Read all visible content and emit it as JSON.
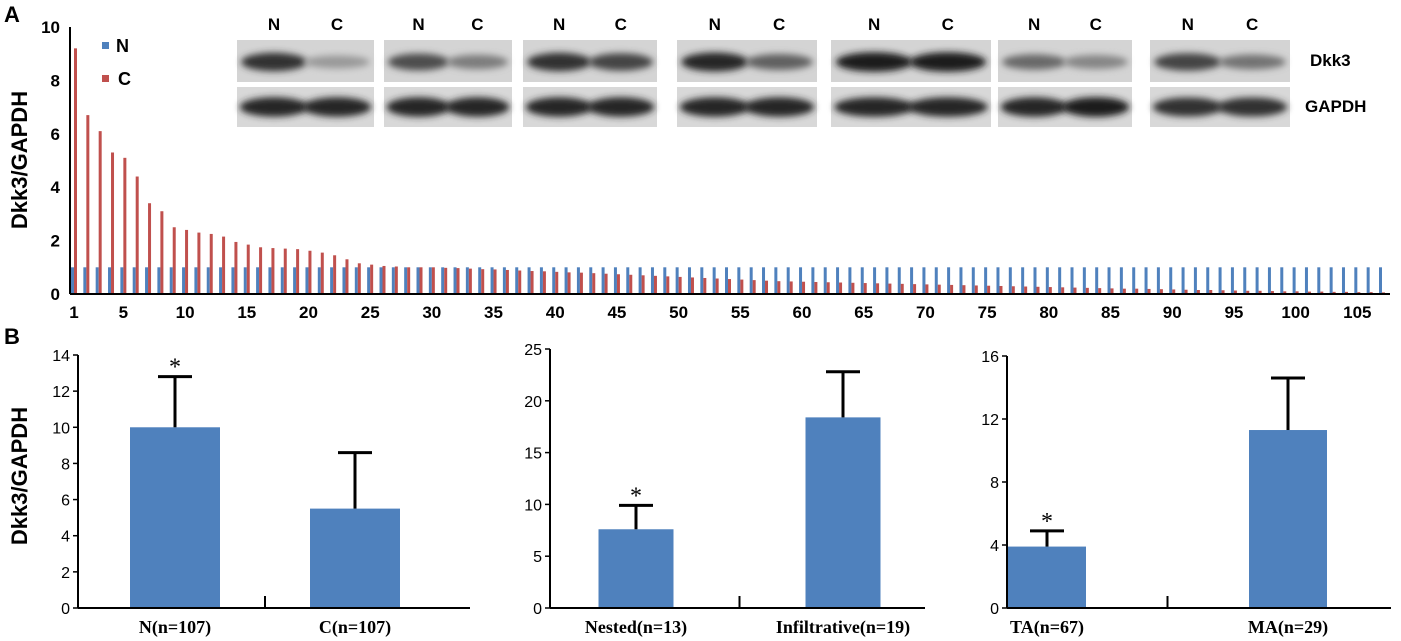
{
  "panel_labels": [
    "A",
    "B"
  ],
  "chart_data": [
    {
      "type": "bar",
      "title": "",
      "ylabel": "Dkk3/GAPDH",
      "xlabel": "",
      "ylim": [
        0,
        10
      ],
      "yticks": [
        0,
        2,
        4,
        6,
        8,
        10
      ],
      "x": [
        1,
        2,
        3,
        4,
        5,
        6,
        7,
        8,
        9,
        10,
        11,
        12,
        13,
        14,
        15,
        16,
        17,
        18,
        19,
        20,
        21,
        22,
        23,
        24,
        25,
        26,
        27,
        28,
        29,
        30,
        31,
        32,
        33,
        34,
        35,
        36,
        37,
        38,
        39,
        40,
        41,
        42,
        43,
        44,
        45,
        46,
        47,
        48,
        49,
        50,
        51,
        52,
        53,
        54,
        55,
        56,
        57,
        58,
        59,
        60,
        61,
        62,
        63,
        64,
        65,
        66,
        67,
        68,
        69,
        70,
        71,
        72,
        73,
        74,
        75,
        76,
        77,
        78,
        79,
        80,
        81,
        82,
        83,
        84,
        85,
        86,
        87,
        88,
        89,
        90,
        91,
        92,
        93,
        94,
        95,
        96,
        97,
        98,
        99,
        100,
        101,
        102,
        103,
        104,
        105,
        106,
        107
      ],
      "xtick_labels": [
        "1",
        "5",
        "10",
        "15",
        "20",
        "25",
        "30",
        "35",
        "40",
        "45",
        "50",
        "55",
        "60",
        "65",
        "70",
        "75",
        "80",
        "85",
        "90",
        "95",
        "100",
        "105"
      ],
      "legend_position": "top-left",
      "series": [
        {
          "name": "N",
          "color": "#4f81bd",
          "values": [
            1,
            1,
            1,
            1,
            1,
            1,
            1,
            1,
            1,
            1,
            1,
            1,
            1,
            1,
            1,
            1,
            1,
            1,
            1,
            1,
            1,
            1,
            1,
            1,
            1,
            1,
            1,
            1,
            1,
            1,
            1,
            1,
            1,
            1,
            1,
            1,
            1,
            1,
            1,
            1,
            1,
            1,
            1,
            1,
            1,
            1,
            1,
            1,
            1,
            1,
            1,
            1,
            1,
            1,
            1,
            1,
            1,
            1,
            1,
            1,
            1,
            1,
            1,
            1,
            1,
            1,
            1,
            1,
            1,
            1,
            1,
            1,
            1,
            1,
            1,
            1,
            1,
            1,
            1,
            1,
            1,
            1,
            1,
            1,
            1,
            1,
            1,
            1,
            1,
            1,
            1,
            1,
            1,
            1,
            1,
            1,
            1,
            1,
            1,
            1,
            1,
            1,
            1,
            1,
            1,
            1,
            1
          ]
        },
        {
          "name": "C",
          "color": "#c0504d",
          "values": [
            9.2,
            6.7,
            6.1,
            5.3,
            5.1,
            4.4,
            3.4,
            3.1,
            2.5,
            2.4,
            2.3,
            2.25,
            2.15,
            1.95,
            1.85,
            1.75,
            1.72,
            1.7,
            1.68,
            1.62,
            1.55,
            1.45,
            1.3,
            1.15,
            1.1,
            1.05,
            1.03,
            1.0,
            1.0,
            1.0,
            0.98,
            0.97,
            0.95,
            0.93,
            0.92,
            0.9,
            0.88,
            0.86,
            0.85,
            0.83,
            0.81,
            0.8,
            0.78,
            0.76,
            0.74,
            0.72,
            0.7,
            0.68,
            0.66,
            0.64,
            0.62,
            0.6,
            0.58,
            0.56,
            0.54,
            0.52,
            0.5,
            0.48,
            0.47,
            0.46,
            0.45,
            0.44,
            0.43,
            0.42,
            0.41,
            0.4,
            0.39,
            0.38,
            0.37,
            0.36,
            0.35,
            0.34,
            0.33,
            0.32,
            0.31,
            0.3,
            0.29,
            0.28,
            0.27,
            0.26,
            0.25,
            0.24,
            0.23,
            0.22,
            0.21,
            0.2,
            0.2,
            0.19,
            0.18,
            0.17,
            0.16,
            0.15,
            0.15,
            0.14,
            0.13,
            0.12,
            0.12,
            0.11,
            0.1,
            0.1,
            0.09,
            0.09,
            0.08,
            0.08,
            0.07,
            0.07,
            0.06
          ]
        }
      ],
      "inset_blot": {
        "lane_labels": [
          "N",
          "C"
        ],
        "band_labels": [
          "Dkk3",
          "GAPDH"
        ],
        "groups": 7,
        "dkk3_intensity": [
          [
            0.85,
            0.3
          ],
          [
            0.7,
            0.45
          ],
          [
            0.85,
            0.75
          ],
          [
            0.9,
            0.6
          ],
          [
            0.95,
            0.95
          ],
          [
            0.55,
            0.4
          ],
          [
            0.75,
            0.5
          ]
        ],
        "gapdh_intensity": [
          [
            0.9,
            0.9
          ],
          [
            0.9,
            0.9
          ],
          [
            0.9,
            0.9
          ],
          [
            0.9,
            0.9
          ],
          [
            0.9,
            0.9
          ],
          [
            0.9,
            0.95
          ],
          [
            0.85,
            0.85
          ]
        ]
      }
    },
    {
      "type": "bar",
      "title": "",
      "ylabel": "Dkk3/GAPDH",
      "ylim": [
        0,
        14
      ],
      "yticks": [
        "0",
        "2",
        "4",
        "6",
        "8",
        "10",
        "12",
        "14"
      ],
      "categories": [
        "N(n=107)",
        "C(n=107)"
      ],
      "values": [
        10.0,
        5.5
      ],
      "errors": [
        2.8,
        3.1
      ],
      "significance": [
        "*",
        ""
      ],
      "color": "#4f81bd"
    },
    {
      "type": "bar",
      "title": "",
      "ylim": [
        0,
        25
      ],
      "yticks": [
        "0",
        "5",
        "10",
        "15",
        "20",
        "25"
      ],
      "categories": [
        "Nested(n=13)",
        "Infiltrative(n=19)"
      ],
      "values": [
        7.6,
        18.4
      ],
      "errors": [
        2.3,
        4.4
      ],
      "significance": [
        "*",
        ""
      ],
      "color": "#4f81bd"
    },
    {
      "type": "bar",
      "title": "",
      "ylim": [
        0,
        16
      ],
      "yticks": [
        "0",
        "4",
        "8",
        "12",
        "16"
      ],
      "categories": [
        "TA(n=67)",
        "MA(n=29)"
      ],
      "values": [
        3.9,
        11.3
      ],
      "errors": [
        1.0,
        3.3
      ],
      "significance": [
        "*",
        ""
      ],
      "color": "#4f81bd"
    }
  ]
}
